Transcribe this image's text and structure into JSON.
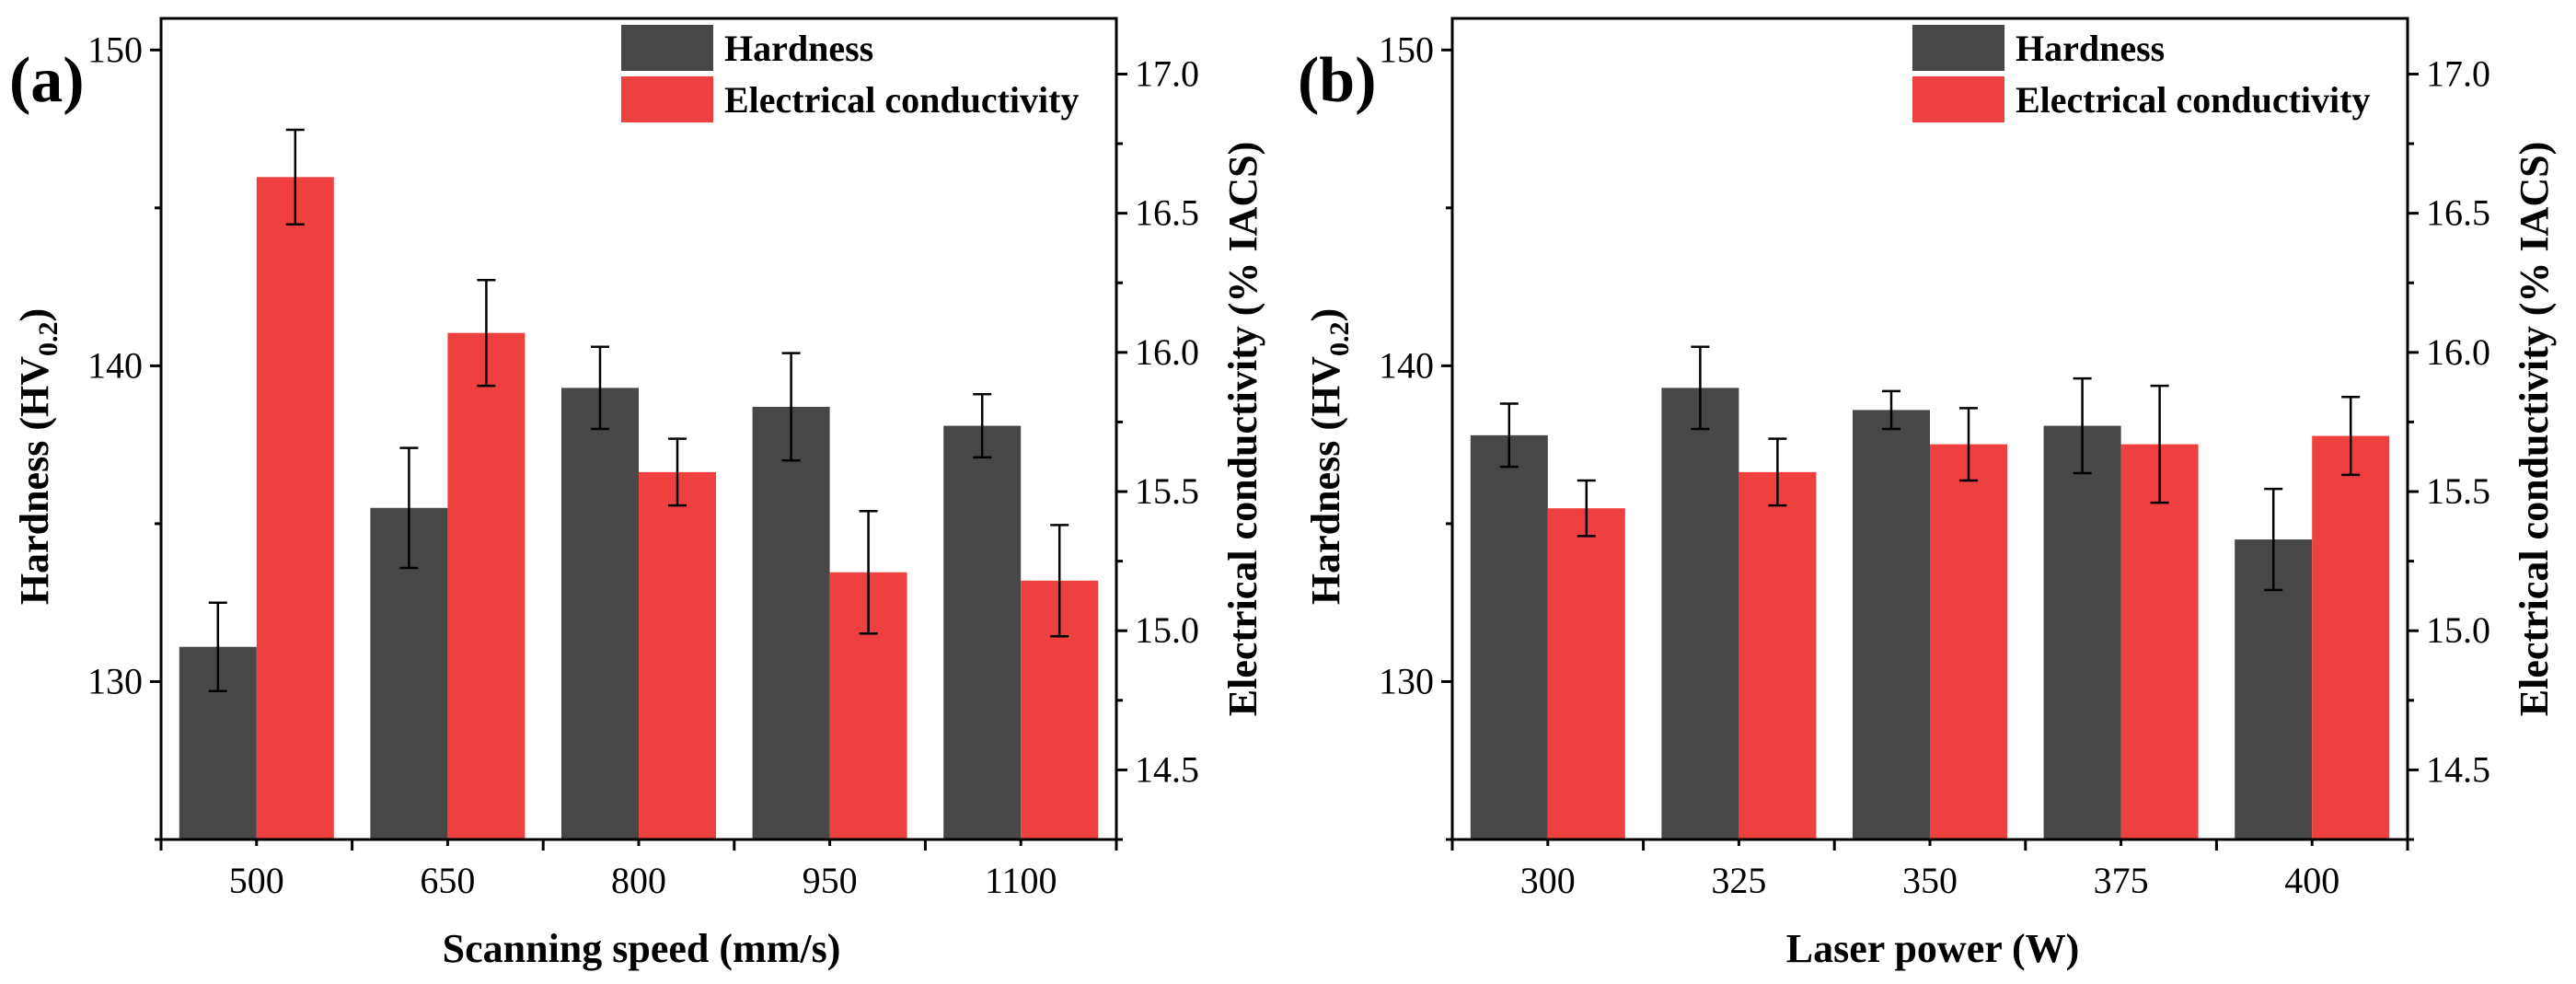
{
  "chart_data": [
    {
      "type": "bar",
      "panel_label": "(a)",
      "categories": [
        "500",
        "650",
        "800",
        "950",
        "1100"
      ],
      "xlabel": "Scanning speed (mm/s)",
      "ylabel_left": {
        "main": "Hardness (HV",
        "sub": "0.2",
        "close": ")"
      },
      "ylabel_right": "Electrical conductivity (% IACS)",
      "ylim_left": [
        125,
        151
      ],
      "ylim_right": [
        14.25,
        17.2
      ],
      "yticks_left": [
        "130",
        "140",
        "150"
      ],
      "yticks_right": [
        "14.5",
        "15.0",
        "15.5",
        "16.0",
        "16.5",
        "17.0"
      ],
      "series": [
        {
          "name": "Hardness",
          "axis": "left",
          "color": "#474747",
          "values": [
            131.1,
            135.5,
            139.3,
            138.7,
            138.1
          ],
          "errors": [
            1.4,
            1.9,
            1.3,
            1.7,
            1.0
          ]
        },
        {
          "name": "Electrical conductivity",
          "axis": "right",
          "color": "#ef4040",
          "values": [
            16.63,
            16.07,
            15.57,
            15.21,
            15.18
          ],
          "errors": [
            0.17,
            0.19,
            0.12,
            0.22,
            0.2
          ]
        }
      ],
      "legend": [
        "Hardness",
        "Electrical conductivity"
      ],
      "legend_position": "top-right"
    },
    {
      "type": "bar",
      "panel_label": "(b)",
      "categories": [
        "300",
        "325",
        "350",
        "375",
        "400"
      ],
      "xlabel": "Laser power (W)",
      "ylabel_left": {
        "main": "Hardness (HV",
        "sub": "0.2",
        "close": ")"
      },
      "ylabel_right": "Electrical conductivity (% IACS)",
      "ylim_left": [
        125,
        151
      ],
      "ylim_right": [
        14.25,
        17.2
      ],
      "yticks_left": [
        "130",
        "140",
        "150"
      ],
      "yticks_right": [
        "14.5",
        "15.0",
        "15.5",
        "16.0",
        "16.5",
        "17.0"
      ],
      "series": [
        {
          "name": "Hardness",
          "axis": "left",
          "color": "#474747",
          "values": [
            137.8,
            139.3,
            138.6,
            138.1,
            134.5
          ],
          "errors": [
            1.0,
            1.3,
            0.6,
            1.5,
            1.6
          ]
        },
        {
          "name": "Electrical conductivity",
          "axis": "right",
          "color": "#ef4040",
          "values": [
            15.44,
            15.57,
            15.67,
            15.67,
            15.7
          ],
          "errors": [
            0.1,
            0.12,
            0.13,
            0.21,
            0.14
          ]
        }
      ],
      "legend": [
        "Hardness",
        "Electrical conductivity"
      ],
      "legend_position": "top-right"
    }
  ]
}
